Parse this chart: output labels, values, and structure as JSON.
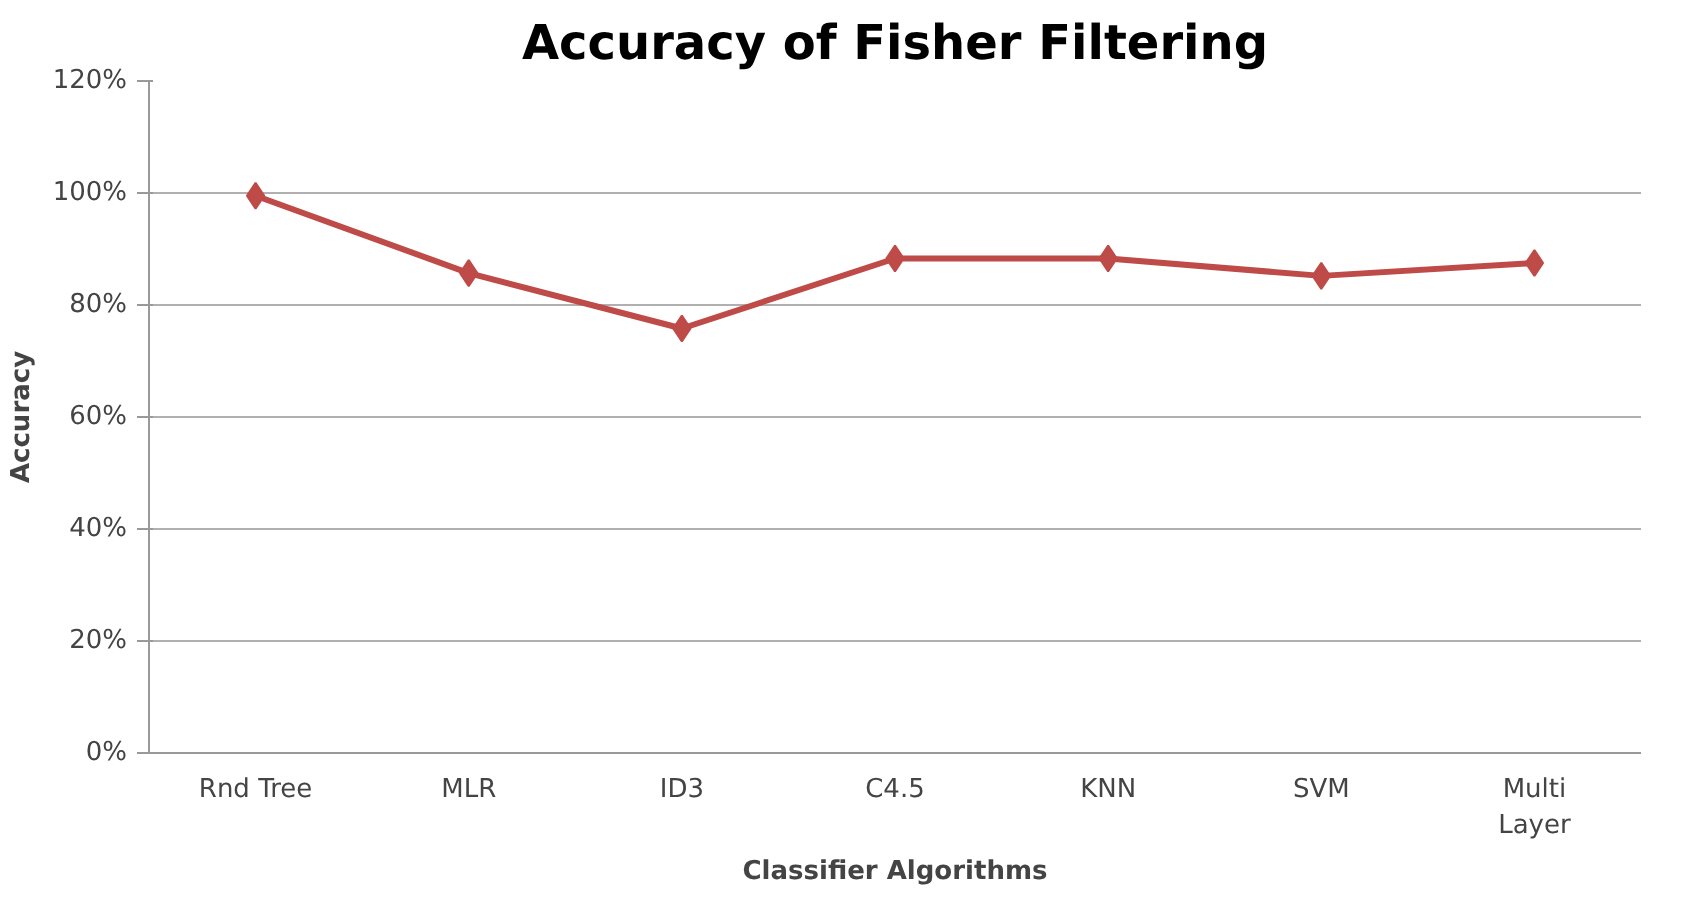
{
  "chart_data": {
    "type": "line",
    "title": "Accuracy of Fisher Filtering",
    "xlabel": "Classifier Algorithms",
    "ylabel": "Accuracy",
    "categories": [
      "Rnd Tree",
      "MLR",
      "ID3",
      "C4.5",
      "KNN",
      "SVM",
      "Multi Layer"
    ],
    "series": [
      {
        "color": "#be4b48",
        "values": [
          99.5,
          85.7,
          75.8,
          88.3,
          88.3,
          85.2,
          87.5
        ]
      }
    ],
    "ylim": [
      0,
      120
    ],
    "yticks": [
      {
        "value": 0,
        "label": "0%"
      },
      {
        "value": 20,
        "label": "20%"
      },
      {
        "value": 40,
        "label": "40%"
      },
      {
        "value": 60,
        "label": "60%"
      },
      {
        "value": 80,
        "label": "80%"
      },
      {
        "value": 100,
        "label": "100%"
      },
      {
        "value": 120,
        "label": "120%"
      }
    ],
    "grid": "y",
    "marker": "diamond",
    "line_style": "solid"
  }
}
